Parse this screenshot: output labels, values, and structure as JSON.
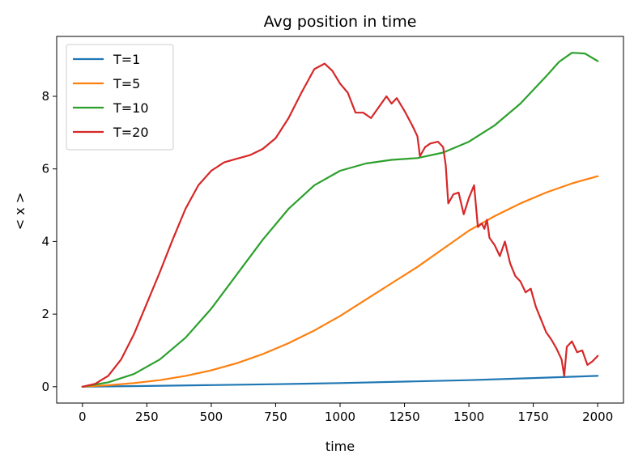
{
  "chart_data": {
    "type": "line",
    "title": "Avg position in time",
    "xlabel": "time",
    "ylabel": "< x >",
    "xlim": [
      -100,
      2100
    ],
    "ylim": [
      -0.45,
      9.65
    ],
    "xticks": [
      0,
      250,
      500,
      750,
      1000,
      1250,
      1500,
      1750,
      2000
    ],
    "yticks": [
      0,
      2,
      4,
      6,
      8
    ],
    "grid": false,
    "legend": "top-left",
    "series": [
      {
        "name": "T=1",
        "color": "#1f77b4",
        "x": [
          0,
          250,
          500,
          750,
          1000,
          1250,
          1500,
          1750,
          2000
        ],
        "y": [
          0,
          0.02,
          0.045,
          0.07,
          0.1,
          0.14,
          0.18,
          0.24,
          0.3
        ]
      },
      {
        "name": "T=5",
        "color": "#ff7f0e",
        "x": [
          0,
          100,
          200,
          300,
          400,
          500,
          600,
          700,
          800,
          900,
          1000,
          1100,
          1200,
          1300,
          1400,
          1500,
          1600,
          1700,
          1800,
          1900,
          2000
        ],
        "y": [
          0,
          0.04,
          0.1,
          0.18,
          0.3,
          0.45,
          0.65,
          0.9,
          1.2,
          1.55,
          1.95,
          2.4,
          2.85,
          3.3,
          3.8,
          4.3,
          4.7,
          5.05,
          5.35,
          5.6,
          5.8
        ]
      },
      {
        "name": "T=10",
        "color": "#2ca02c",
        "x": [
          0,
          100,
          200,
          300,
          400,
          500,
          600,
          700,
          800,
          900,
          1000,
          1100,
          1200,
          1300,
          1400,
          1500,
          1600,
          1700,
          1800,
          1850,
          1900,
          1950,
          2000
        ],
        "y": [
          0,
          0.12,
          0.35,
          0.75,
          1.35,
          2.15,
          3.1,
          4.05,
          4.9,
          5.55,
          5.95,
          6.15,
          6.25,
          6.3,
          6.45,
          6.75,
          7.2,
          7.8,
          8.55,
          8.95,
          9.2,
          9.18,
          8.97
        ]
      },
      {
        "name": "T=20",
        "color": "#d62728",
        "x": [
          0,
          50,
          100,
          150,
          200,
          250,
          300,
          350,
          400,
          450,
          500,
          550,
          600,
          650,
          700,
          750,
          800,
          850,
          900,
          940,
          970,
          1000,
          1030,
          1060,
          1090,
          1120,
          1150,
          1180,
          1200,
          1220,
          1250,
          1280,
          1300,
          1310,
          1330,
          1350,
          1380,
          1400,
          1410,
          1420,
          1440,
          1460,
          1480,
          1500,
          1520,
          1535,
          1550,
          1560,
          1570,
          1580,
          1600,
          1620,
          1640,
          1660,
          1680,
          1700,
          1720,
          1740,
          1760,
          1780,
          1800,
          1820,
          1840,
          1860,
          1870,
          1880,
          1900,
          1920,
          1940,
          1960,
          1980,
          2000
        ],
        "y": [
          0,
          0.08,
          0.3,
          0.75,
          1.45,
          2.3,
          3.15,
          4.05,
          4.9,
          5.55,
          5.95,
          6.18,
          6.28,
          6.38,
          6.55,
          6.85,
          7.4,
          8.1,
          8.75,
          8.9,
          8.7,
          8.35,
          8.1,
          7.55,
          7.55,
          7.4,
          7.7,
          8.0,
          7.8,
          7.95,
          7.6,
          7.2,
          6.9,
          6.35,
          6.6,
          6.7,
          6.75,
          6.6,
          6.1,
          5.05,
          5.3,
          5.35,
          4.75,
          5.2,
          5.55,
          4.4,
          4.5,
          4.35,
          4.6,
          4.1,
          3.9,
          3.6,
          4.0,
          3.4,
          3.05,
          2.9,
          2.6,
          2.7,
          2.2,
          1.85,
          1.5,
          1.3,
          1.05,
          0.75,
          0.3,
          1.1,
          1.25,
          0.95,
          1.0,
          0.6,
          0.7,
          0.85
        ]
      }
    ]
  }
}
